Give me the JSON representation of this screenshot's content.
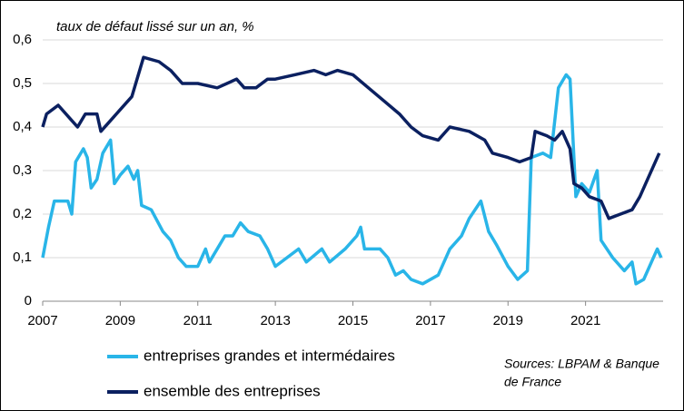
{
  "chart_data": {
    "type": "line",
    "title": "taux de défaut lissé sur un an, %",
    "source": [
      "Sources: LBPAM & Banque",
      "de France"
    ],
    "xlim": [
      2007,
      2023
    ],
    "xticks": [
      2007,
      2009,
      2011,
      2013,
      2015,
      2017,
      2019,
      2021
    ],
    "ylim": [
      0,
      0.6
    ],
    "yticks": [
      0,
      {
        "value": 0.1,
        "label": "0,1"
      },
      {
        "value": 0.2,
        "label": "0,2"
      },
      {
        "value": 0.3,
        "label": "0,3"
      },
      {
        "value": 0.4,
        "label": "0,4"
      },
      {
        "value": 0.5,
        "label": "0,5"
      },
      {
        "value": 0.6,
        "label": "0,6"
      }
    ],
    "grid": true,
    "legend": "bottom",
    "series": [
      {
        "name": "entreprises grandes et intermédaires",
        "color": "#29b5e8",
        "x": [
          2007,
          2007.15,
          2007.3,
          2007.65,
          2007.75,
          2007.85,
          2008.05,
          2008.15,
          2008.25,
          2008.4,
          2008.55,
          2008.75,
          2008.85,
          2009,
          2009.2,
          2009.35,
          2009.45,
          2009.55,
          2009.8,
          2010.1,
          2010.3,
          2010.5,
          2010.7,
          2011,
          2011.1,
          2011.2,
          2011.3,
          2011.7,
          2011.9,
          2012.1,
          2012.3,
          2012.6,
          2012.8,
          2013,
          2013.3,
          2013.6,
          2013.8,
          2014.2,
          2014.4,
          2014.8,
          2015.1,
          2015.2,
          2015.3,
          2015.7,
          2015.9,
          2016.1,
          2016.3,
          2016.5,
          2016.8,
          2017.2,
          2017.5,
          2017.8,
          2018,
          2018.3,
          2018.5,
          2018.7,
          2019,
          2019.25,
          2019.5,
          2019.6,
          2019.9,
          2020.1,
          2020.3,
          2020.5,
          2020.6,
          2020.75,
          2020.9,
          2021.1,
          2021.3,
          2021.4,
          2021.7,
          2022,
          2022.2,
          2022.3,
          2022.5,
          2022.8,
          2022.85,
          2022.95
        ],
        "values": [
          0.1,
          0.17,
          0.23,
          0.23,
          0.2,
          0.32,
          0.35,
          0.33,
          0.26,
          0.28,
          0.34,
          0.37,
          0.27,
          0.29,
          0.31,
          0.28,
          0.3,
          0.22,
          0.21,
          0.16,
          0.14,
          0.1,
          0.08,
          0.08,
          0.1,
          0.12,
          0.09,
          0.15,
          0.15,
          0.18,
          0.16,
          0.15,
          0.12,
          0.08,
          0.1,
          0.12,
          0.09,
          0.12,
          0.09,
          0.12,
          0.15,
          0.17,
          0.12,
          0.12,
          0.1,
          0.06,
          0.07,
          0.05,
          0.04,
          0.06,
          0.12,
          0.15,
          0.19,
          0.23,
          0.16,
          0.13,
          0.08,
          0.05,
          0.07,
          0.33,
          0.34,
          0.33,
          0.49,
          0.52,
          0.51,
          0.24,
          0.27,
          0.25,
          0.3,
          0.14,
          0.1,
          0.07,
          0.09,
          0.04,
          0.05,
          0.11,
          0.12,
          0.1
        ]
      },
      {
        "name": "ensemble des entreprises",
        "color": "#0b2060",
        "x": [
          2007,
          2007.1,
          2007.4,
          2007.7,
          2007.9,
          2008.1,
          2008.4,
          2008.5,
          2008.8,
          2009,
          2009.3,
          2009.6,
          2010,
          2010.3,
          2010.6,
          2011,
          2011.5,
          2012,
          2012.2,
          2012.5,
          2012.8,
          2013,
          2013.5,
          2014,
          2014.3,
          2014.6,
          2015,
          2015.4,
          2015.8,
          2016.2,
          2016.5,
          2016.8,
          2017.2,
          2017.5,
          2018,
          2018.4,
          2018.6,
          2019,
          2019.3,
          2019.6,
          2019.7,
          2020,
          2020.2,
          2020.4,
          2020.6,
          2020.7,
          2020.9,
          2021.1,
          2021.4,
          2021.6,
          2021.9,
          2022.2,
          2022.4,
          2022.6,
          2022.9
        ],
        "values": [
          0.4,
          0.43,
          0.45,
          0.42,
          0.4,
          0.43,
          0.43,
          0.39,
          0.42,
          0.44,
          0.47,
          0.56,
          0.55,
          0.53,
          0.5,
          0.5,
          0.49,
          0.51,
          0.49,
          0.49,
          0.51,
          0.51,
          0.52,
          0.53,
          0.52,
          0.53,
          0.52,
          0.49,
          0.46,
          0.43,
          0.4,
          0.38,
          0.37,
          0.4,
          0.39,
          0.37,
          0.34,
          0.33,
          0.32,
          0.33,
          0.39,
          0.38,
          0.37,
          0.39,
          0.35,
          0.27,
          0.26,
          0.24,
          0.23,
          0.19,
          0.2,
          0.21,
          0.24,
          0.28,
          0.34
        ]
      }
    ]
  }
}
